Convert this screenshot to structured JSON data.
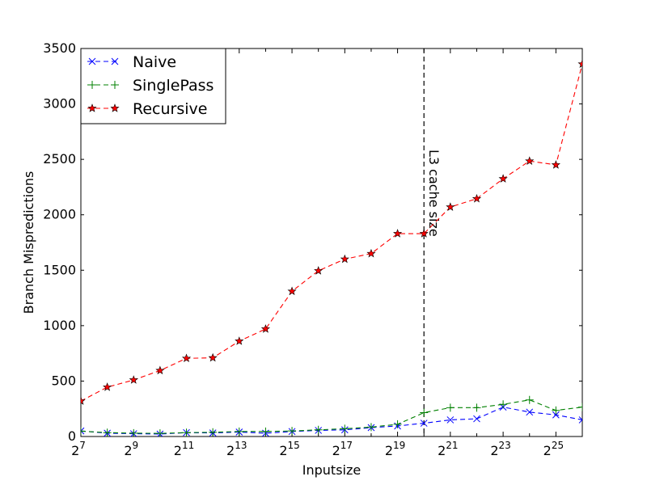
{
  "chart_data": {
    "type": "line",
    "xlabel": "Inputsize",
    "ylabel": "Branch Mispredictions",
    "x_scale": "log2",
    "x_exponents": [
      7,
      8,
      9,
      10,
      11,
      12,
      13,
      14,
      15,
      16,
      17,
      18,
      19,
      20,
      21,
      22,
      23,
      24,
      25,
      26
    ],
    "xlim_exponents": [
      7,
      26
    ],
    "x_tick_base": "2",
    "x_tick_exponents": [
      "7",
      "9",
      "11",
      "13",
      "15",
      "17",
      "19",
      "21",
      "23",
      "25"
    ],
    "ylim": [
      0,
      3500
    ],
    "y_ticks": [
      "0",
      "500",
      "1000",
      "1500",
      "2000",
      "2500",
      "3000",
      "3500"
    ],
    "grid": false,
    "legend_position": "top-left",
    "series": [
      {
        "name": "Naive",
        "color": "#0000ff",
        "marker": "x",
        "values": [
          50,
          30,
          25,
          22,
          35,
          32,
          40,
          30,
          45,
          55,
          60,
          80,
          95,
          120,
          150,
          160,
          265,
          220,
          195,
          150
        ]
      },
      {
        "name": "SinglePass",
        "color": "#008000",
        "marker": "+",
        "values": [
          48,
          35,
          30,
          28,
          35,
          38,
          45,
          45,
          50,
          60,
          70,
          85,
          110,
          215,
          260,
          260,
          290,
          330,
          235,
          265
        ]
      },
      {
        "name": "Recursive",
        "color": "#ff0000",
        "marker": "star",
        "values": [
          320,
          445,
          510,
          595,
          705,
          710,
          860,
          970,
          1310,
          1495,
          1600,
          1650,
          1830,
          1830,
          2070,
          2145,
          2325,
          2485,
          2450,
          3360
        ]
      }
    ],
    "annotations": [
      {
        "type": "vline",
        "x_exponent": 20,
        "text": "L3 cache size"
      }
    ]
  }
}
